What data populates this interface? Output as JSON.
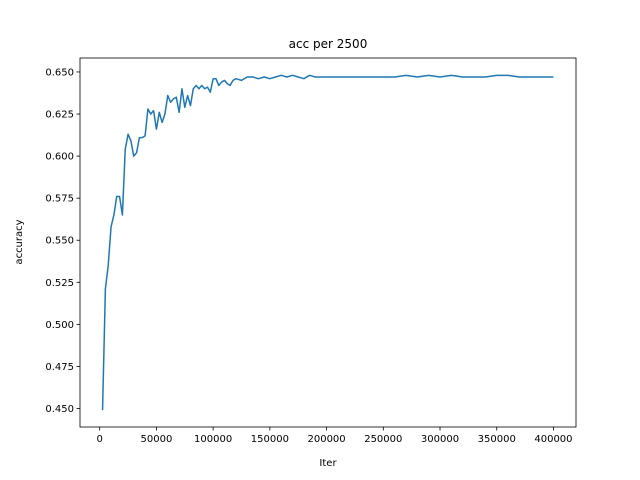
{
  "chart_data": {
    "type": "line",
    "title": "acc per 2500",
    "xlabel": "Iter",
    "ylabel": "accuracy",
    "color": "#1f77b4",
    "x": [
      2500,
      5000,
      7500,
      10000,
      12500,
      15000,
      17500,
      20000,
      22500,
      25000,
      27500,
      30000,
      32500,
      35000,
      37500,
      40000,
      42500,
      45000,
      47500,
      50000,
      52500,
      55000,
      57500,
      60000,
      62500,
      65000,
      67500,
      70000,
      72500,
      75000,
      77500,
      80000,
      82500,
      85000,
      87500,
      90000,
      92500,
      95000,
      97500,
      100000,
      102500,
      105000,
      107500,
      110000,
      112500,
      115000,
      117500,
      120000,
      125000,
      130000,
      135000,
      140000,
      145000,
      150000,
      155000,
      160000,
      165000,
      170000,
      175000,
      180000,
      185000,
      190000,
      200000,
      210000,
      220000,
      230000,
      240000,
      250000,
      260000,
      270000,
      280000,
      290000,
      300000,
      310000,
      320000,
      330000,
      340000,
      350000,
      360000,
      370000,
      380000,
      390000,
      400000
    ],
    "values": [
      0.449,
      0.521,
      0.535,
      0.558,
      0.565,
      0.576,
      0.576,
      0.565,
      0.604,
      0.613,
      0.609,
      0.6,
      0.602,
      0.611,
      0.611,
      0.612,
      0.628,
      0.625,
      0.627,
      0.616,
      0.626,
      0.62,
      0.625,
      0.636,
      0.632,
      0.634,
      0.635,
      0.626,
      0.64,
      0.629,
      0.636,
      0.63,
      0.64,
      0.642,
      0.64,
      0.642,
      0.64,
      0.641,
      0.638,
      0.646,
      0.646,
      0.642,
      0.644,
      0.645,
      0.643,
      0.642,
      0.645,
      0.646,
      0.645,
      0.647,
      0.647,
      0.646,
      0.647,
      0.646,
      0.647,
      0.648,
      0.647,
      0.648,
      0.647,
      0.646,
      0.648,
      0.647,
      0.647,
      0.647,
      0.647,
      0.647,
      0.647,
      0.647,
      0.647,
      0.648,
      0.647,
      0.648,
      0.647,
      0.648,
      0.647,
      0.647,
      0.647,
      0.648,
      0.648,
      0.647,
      0.647,
      0.647,
      0.647
    ],
    "xlim": [
      -17375,
      419875
    ],
    "ylim": [
      0.439,
      0.6583
    ],
    "xticks": [
      0,
      50000,
      100000,
      150000,
      200000,
      250000,
      300000,
      350000,
      400000
    ],
    "yticks": [
      {
        "value": 0.45,
        "label": "0.450"
      },
      0.475,
      {
        "value": 0.5,
        "label": "0.500"
      },
      0.525,
      {
        "value": 0.55,
        "label": "0.550"
      },
      0.575,
      {
        "value": 0.6,
        "label": "0.600"
      },
      0.625,
      {
        "value": 0.65,
        "label": "0.650"
      }
    ]
  }
}
